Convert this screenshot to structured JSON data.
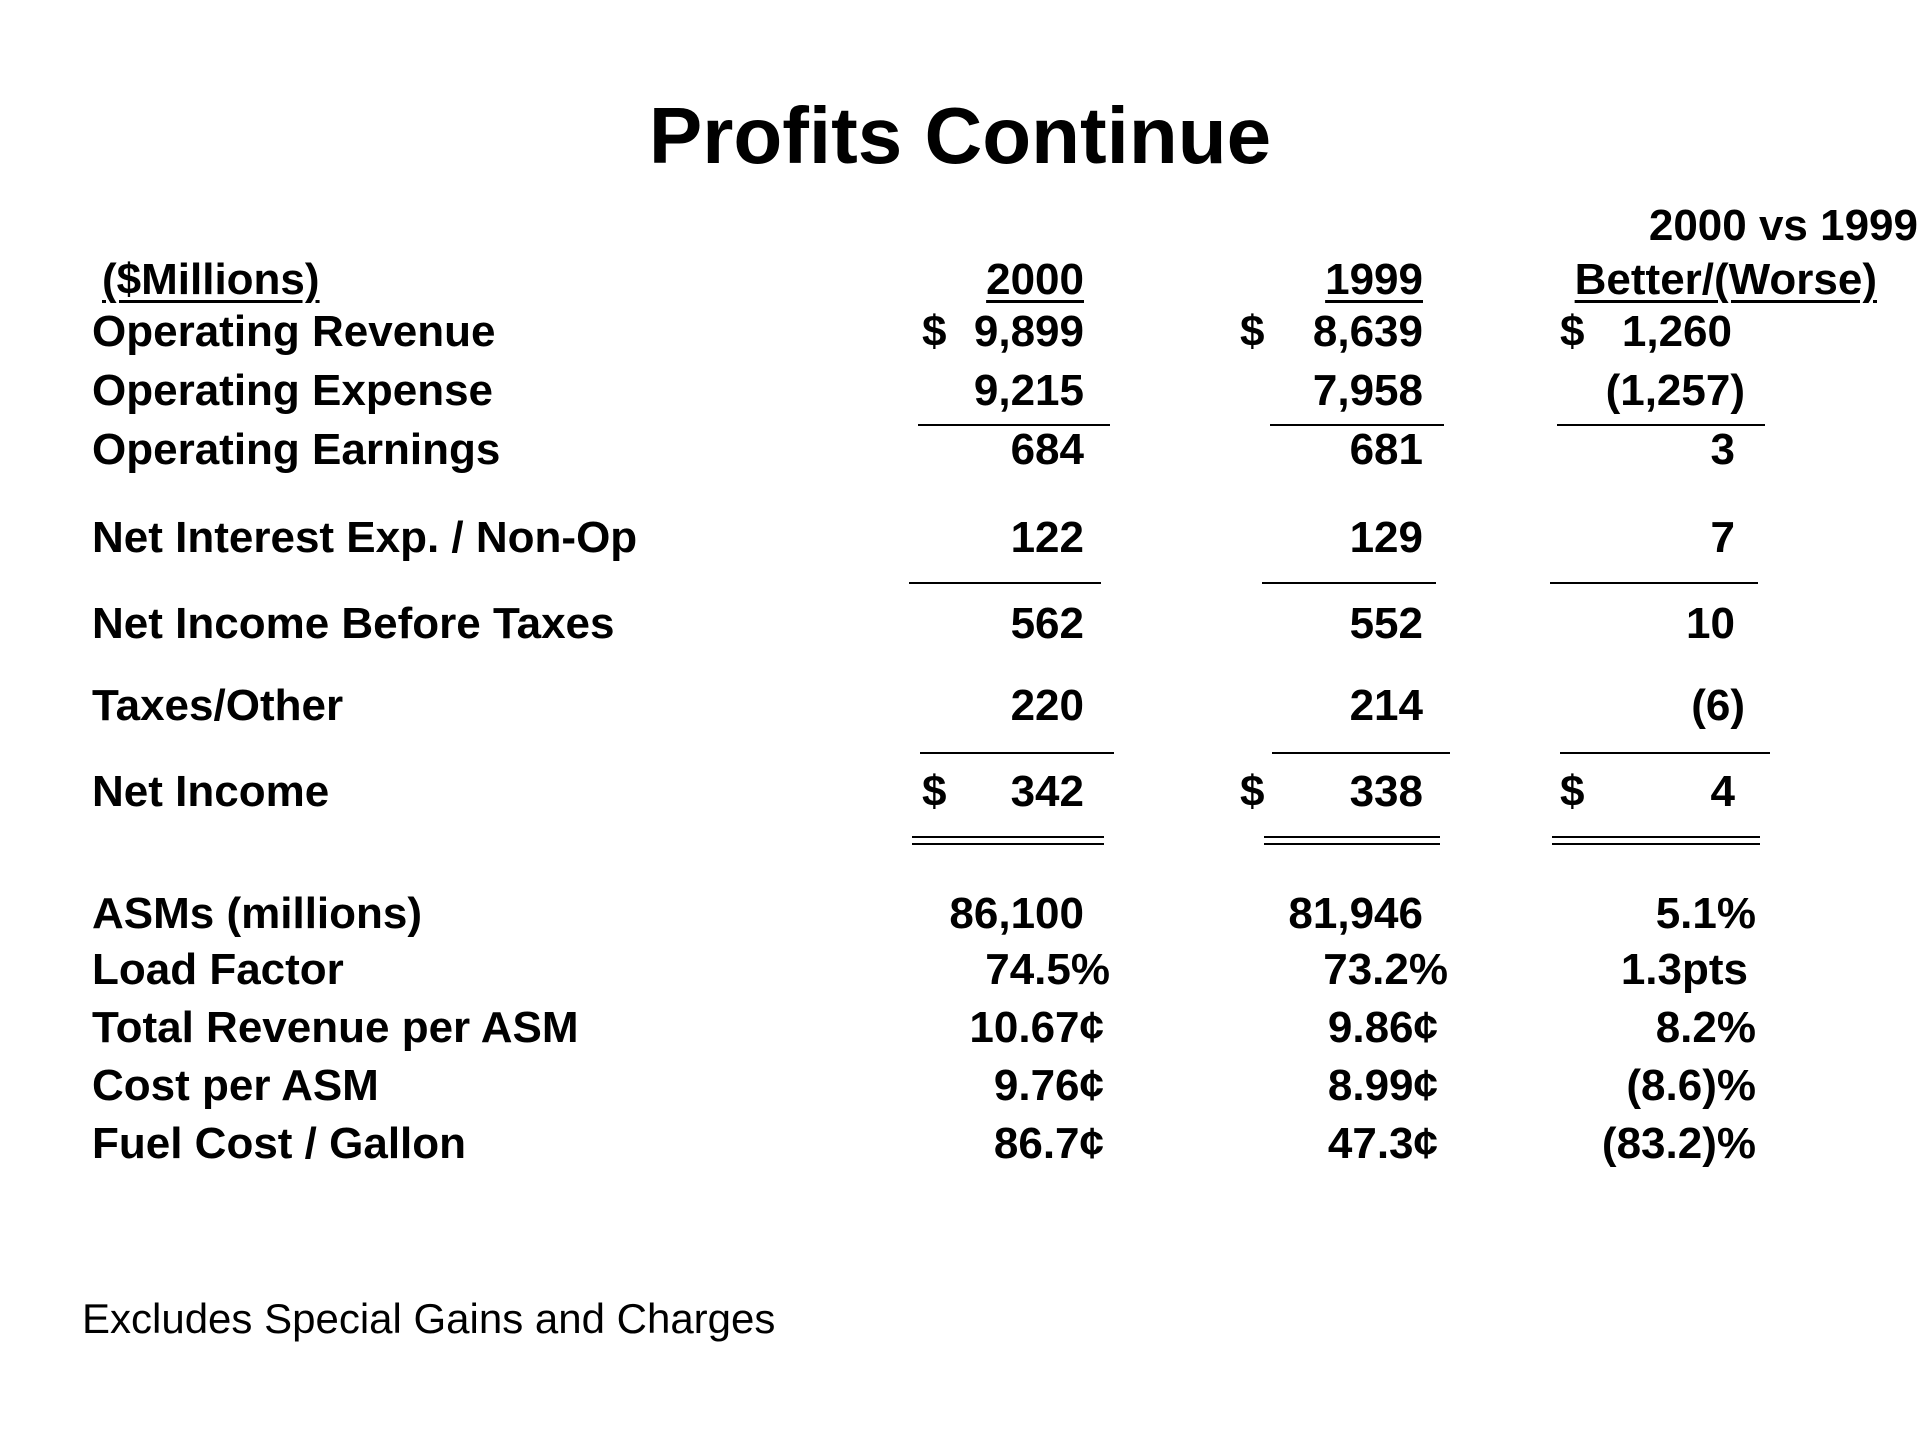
{
  "title": "Profits Continue",
  "header": {
    "units": "($Millions)",
    "col_2000": "2000",
    "col_1999": "1999",
    "comparison_top": "2000 vs 1999",
    "comparison_bottom": "Better/(Worse)"
  },
  "rows": [
    {
      "label": "Operating Revenue",
      "v2000": "9,899",
      "v1999": "8,639",
      "diff": "1,260",
      "dollar": true
    },
    {
      "label": "Operating Expense",
      "v2000": "9,215",
      "v1999": "7,958",
      "diff": "(1,257)"
    },
    {
      "label": "Operating Earnings",
      "v2000": "684",
      "v1999": "681",
      "diff": "3"
    },
    {
      "label": "Net Interest Exp. / Non-Op",
      "v2000": "122",
      "v1999": "129",
      "diff": "7"
    },
    {
      "label": "Net Income Before Taxes",
      "v2000": "562",
      "v1999": "552",
      "diff": "10"
    },
    {
      "label": "Taxes/Other",
      "v2000": "220",
      "v1999": "214",
      "diff": "(6)"
    },
    {
      "label": "Net Income",
      "v2000": "342",
      "v1999": "338",
      "diff": "4",
      "dollar": true
    }
  ],
  "stats": [
    {
      "label": "ASMs (millions)",
      "v2000": "86,100",
      "v1999": "81,946",
      "diff": "5.1%"
    },
    {
      "label": "Load Factor",
      "v2000": "74.5%",
      "v1999": "73.2%",
      "diff": "1.3pts"
    },
    {
      "label": "Total Revenue per ASM",
      "v2000": "10.67¢",
      "v1999": "9.86¢",
      "diff": "8.2%"
    },
    {
      "label": "Cost per ASM",
      "v2000": "9.76¢",
      "v1999": "8.99¢",
      "diff": "(8.6)%"
    },
    {
      "label": "Fuel Cost / Gallon",
      "v2000": "86.7¢",
      "v1999": "47.3¢",
      "diff": "(83.2)%"
    }
  ],
  "currency_symbol": "$",
  "footnote": "Excludes Special Gains and Charges"
}
